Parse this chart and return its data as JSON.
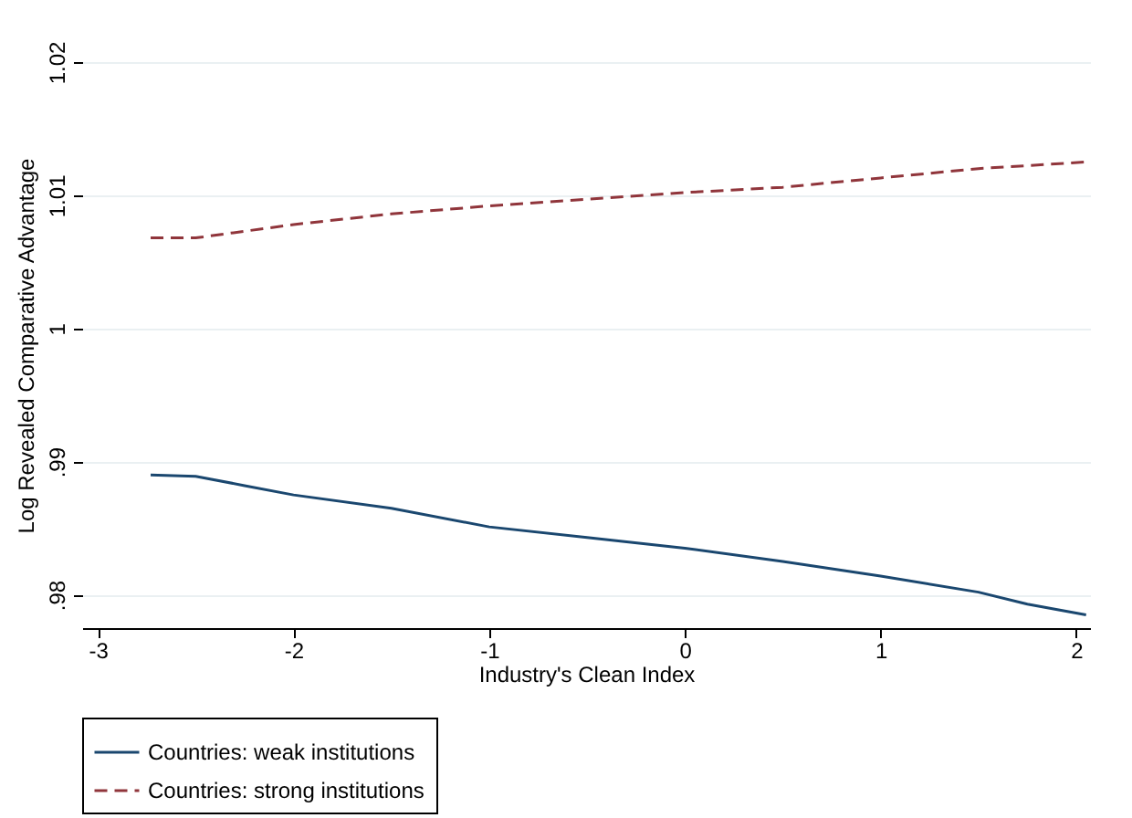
{
  "chart_data": {
    "type": "line",
    "xlabel": "Industry's Clean Index",
    "ylabel": "Log Revealed Comparative Advantage",
    "xlim": [
      -3.08,
      2.07
    ],
    "xticks": [
      -3,
      -2,
      -1,
      0,
      1,
      2
    ],
    "ylim": [
      0.9775,
      1.02
    ],
    "yticks": [
      {
        "value": 0.98,
        "label": ".98"
      },
      {
        "value": 0.99,
        "label": ".99"
      },
      1,
      1.01,
      1.02
    ],
    "grid": "y",
    "legend": "bottom",
    "series": [
      {
        "name": "Countries: weak institutions",
        "color": "#1a476f",
        "line_style": "solid",
        "x": [
          -2.73,
          -2.5,
          -2.25,
          -2,
          -1.5,
          -1,
          -0.5,
          0,
          0.5,
          1,
          1.5,
          1.75,
          2.05
        ],
        "values": [
          0.989,
          0.9889,
          0.9882,
          0.9875,
          0.9865,
          0.9851,
          0.9843,
          0.9835,
          0.9825,
          0.9814,
          0.9802,
          0.9793,
          0.9785
        ]
      },
      {
        "name": "Countries: strong institutions",
        "color": "#90353b",
        "line_style": "dashed",
        "x": [
          -2.73,
          -2.5,
          -2.25,
          -2,
          -1.5,
          -1,
          -0.5,
          0,
          0.5,
          1,
          1.5,
          2.05
        ],
        "values": [
          1.0068,
          1.0068,
          1.0073,
          1.0078,
          1.0086,
          1.0092,
          1.0097,
          1.0102,
          1.0106,
          1.0113,
          1.012,
          1.0125
        ]
      }
    ]
  }
}
